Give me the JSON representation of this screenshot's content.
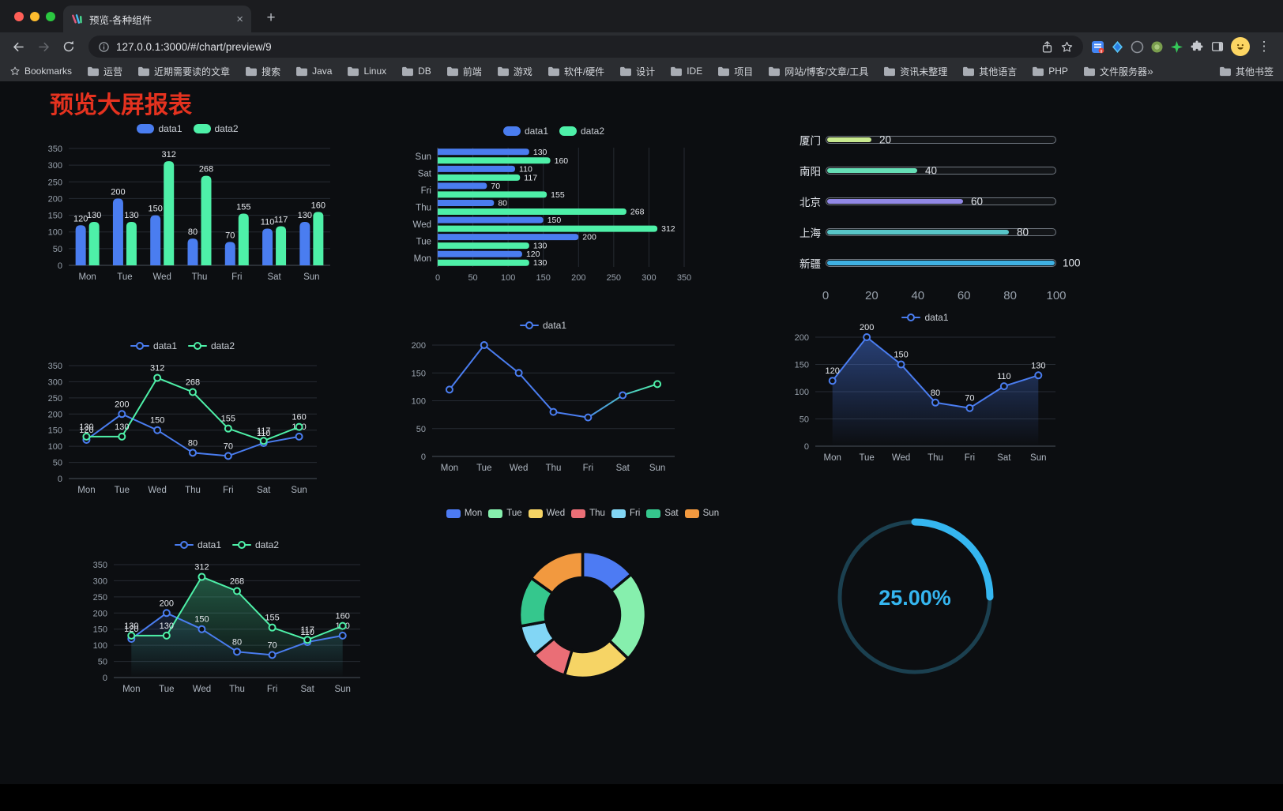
{
  "browser": {
    "tab_title": "预览-各种组件",
    "url": "127.0.0.1:3000/#/chart/preview/9",
    "bookmarks_label": "Bookmarks",
    "bookmark_folders": [
      "运营",
      "近期需要读的文章",
      "搜索",
      "Java",
      "Linux",
      "DB",
      "前端",
      "游戏",
      "软件/硬件",
      "设计",
      "IDE",
      "项目",
      "网站/博客/文章/工具",
      "资讯未整理",
      "其他语言",
      "PHP",
      "文件服务器"
    ],
    "bookmarks_overflow": "»",
    "other_bookmarks": "其他书签",
    "icons": {
      "new_tab": "+",
      "tab_close": "×",
      "menu": "⋮"
    }
  },
  "page": {
    "title": "预览大屏报表",
    "title_color": "#e5321f",
    "background": "#0c0e11"
  },
  "chart_data": [
    {
      "type": "bar",
      "categories": [
        "Mon",
        "Tue",
        "Wed",
        "Thu",
        "Fri",
        "Sat",
        "Sun"
      ],
      "series": [
        {
          "name": "data1",
          "color": "#4a7df0",
          "values": [
            120,
            200,
            150,
            80,
            70,
            110,
            130
          ]
        },
        {
          "name": "data2",
          "color": "#4ef0a8",
          "values": [
            130,
            130,
            312,
            268,
            155,
            117,
            160
          ]
        }
      ],
      "ylim": [
        0,
        350
      ],
      "ytick_step": 50,
      "labels": true,
      "legend_position": "top",
      "grid": true
    },
    {
      "type": "hbar",
      "categories": [
        "Mon",
        "Tue",
        "Wed",
        "Thu",
        "Fri",
        "Sat",
        "Sun"
      ],
      "series": [
        {
          "name": "data1",
          "color": "#4a7df0",
          "values": [
            120,
            200,
            150,
            80,
            70,
            110,
            130
          ]
        },
        {
          "name": "data2",
          "color": "#4ef0a8",
          "values": [
            130,
            130,
            312,
            268,
            155,
            117,
            160
          ]
        }
      ],
      "xlim": [
        0,
        350
      ],
      "xtick_step": 50,
      "labels": true,
      "legend_position": "top",
      "grid": true
    },
    {
      "type": "progress",
      "items": [
        {
          "label": "厦门",
          "value": 20,
          "color": "#c9e98f"
        },
        {
          "label": "南阳",
          "value": 40,
          "color": "#66dfb6"
        },
        {
          "label": "北京",
          "value": 60,
          "color": "#9188e5"
        },
        {
          "label": "上海",
          "value": 80,
          "color": "#58c5c8"
        },
        {
          "label": "新疆",
          "value": 100,
          "color": "#3fb1e3"
        }
      ],
      "max": 100,
      "xticks": [
        0,
        20,
        40,
        60,
        80,
        100
      ]
    },
    {
      "type": "line",
      "categories": [
        "Mon",
        "Tue",
        "Wed",
        "Thu",
        "Fri",
        "Sat",
        "Sun"
      ],
      "series": [
        {
          "name": "data1",
          "color": "#4a7df0",
          "values": [
            120,
            200,
            150,
            80,
            70,
            110,
            130
          ]
        },
        {
          "name": "data2",
          "color": "#4ef0a8",
          "values": [
            130,
            130,
            312,
            268,
            155,
            117,
            160
          ]
        }
      ],
      "ylim": [
        0,
        350
      ],
      "ytick_step": 50,
      "labels": true,
      "legend_position": "top",
      "grid": true
    },
    {
      "type": "line",
      "categories": [
        "Mon",
        "Tue",
        "Wed",
        "Thu",
        "Fri",
        "Sat",
        "Sun"
      ],
      "series": [
        {
          "name": "data1",
          "color": "#4a7df0",
          "values": [
            120,
            200,
            150,
            80,
            70,
            110,
            130
          ]
        }
      ],
      "line_gradient": [
        "#4a7df0",
        "#4ef0a8"
      ],
      "ylim": [
        0,
        200
      ],
      "ytick_step": 50,
      "labels": false,
      "legend_position": "top",
      "grid": true
    },
    {
      "type": "line",
      "categories": [
        "Mon",
        "Tue",
        "Wed",
        "Thu",
        "Fri",
        "Sat",
        "Sun"
      ],
      "series": [
        {
          "name": "data1",
          "color": "#4a7df0",
          "values": [
            120,
            200,
            150,
            80,
            70,
            110,
            130
          ],
          "area": true,
          "area_opacity": 0.45
        }
      ],
      "ylim": [
        0,
        200
      ],
      "ytick_step": 50,
      "labels": true,
      "legend_position": "top",
      "grid": true
    },
    {
      "type": "line",
      "categories": [
        "Mon",
        "Tue",
        "Wed",
        "Thu",
        "Fri",
        "Sat",
        "Sun"
      ],
      "series": [
        {
          "name": "data1",
          "color": "#4a7df0",
          "values": [
            120,
            200,
            150,
            80,
            70,
            110,
            130
          ],
          "area": true,
          "area_opacity": 0.15
        },
        {
          "name": "data2",
          "color": "#4ef0a8",
          "values": [
            130,
            130,
            312,
            268,
            155,
            117,
            160
          ],
          "area": true,
          "area_opacity": 0.32
        }
      ],
      "ylim": [
        0,
        350
      ],
      "ytick_step": 50,
      "labels": true,
      "legend_position": "top",
      "grid": true
    },
    {
      "type": "pie",
      "donut": true,
      "items": [
        {
          "name": "Mon",
          "value": 120,
          "color": "#4d7bf3"
        },
        {
          "name": "Tue",
          "value": 200,
          "color": "#86efad"
        },
        {
          "name": "Wed",
          "value": 150,
          "color": "#f6d465"
        },
        {
          "name": "Thu",
          "value": 80,
          "color": "#ea6e76"
        },
        {
          "name": "Fri",
          "value": 70,
          "color": "#82d6f5"
        },
        {
          "name": "Sat",
          "value": 110,
          "color": "#35c78d"
        },
        {
          "name": "Sun",
          "value": 130,
          "color": "#f2993f"
        }
      ],
      "legend_position": "top"
    },
    {
      "type": "gauge",
      "value": 25,
      "label": "25.00%",
      "color": "#35b6f0",
      "track_color": "#1b4050"
    }
  ]
}
